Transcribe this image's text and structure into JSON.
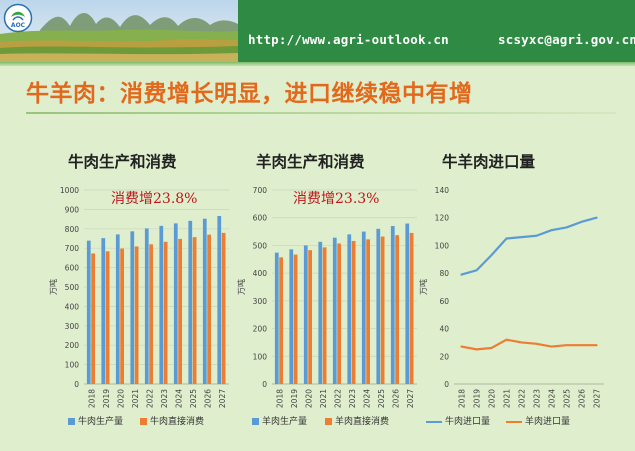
{
  "header": {
    "url": "http://www.agri-outlook.cn",
    "email": "scsyxc@agri.gov.cn",
    "logo_text": "AOC"
  },
  "slide_title": "牛羊肉：消费增长明显，进口继续稳中有增",
  "colors": {
    "header_green": "#2f8a43",
    "background": "#dfeecd",
    "title_orange": "#e2691c",
    "series_blue": "#5b9bd5",
    "series_orange": "#ed7d31",
    "note_red": "#c0161b"
  },
  "chart_data": [
    {
      "type": "bar",
      "title": "牛肉生产和消费",
      "annotation": "消费增23.8%",
      "ylabel": "万吨",
      "ylim": [
        0,
        1000
      ],
      "yticks": [
        0,
        100,
        200,
        300,
        400,
        500,
        600,
        700,
        800,
        900,
        1000
      ],
      "categories": [
        "2018",
        "2019",
        "2020",
        "2021",
        "2022",
        "2023",
        "2024",
        "2025",
        "2026",
        "2027"
      ],
      "series": [
        {
          "name": "牛肉生产量",
          "values": [
            739,
            752,
            771,
            787,
            802,
            815,
            828,
            841,
            852,
            866
          ]
        },
        {
          "name": "牛肉直接消费",
          "values": [
            673,
            684,
            698,
            709,
            720,
            733,
            748,
            757,
            770,
            779
          ]
        }
      ],
      "grid": true,
      "legend": "bottom"
    },
    {
      "type": "bar",
      "title": "羊肉生产和消费",
      "annotation": "消费增23.3%",
      "ylabel": "万吨",
      "ylim": [
        0,
        700
      ],
      "yticks": [
        0,
        100,
        200,
        300,
        400,
        500,
        600,
        700
      ],
      "categories": [
        "2018",
        "2019",
        "2020",
        "2021",
        "2022",
        "2023",
        "2024",
        "2025",
        "2026",
        "2027"
      ],
      "series": [
        {
          "name": "羊肉生产量",
          "values": [
            474,
            486,
            500,
            513,
            528,
            540,
            550,
            560,
            570,
            579
          ]
        },
        {
          "name": "羊肉直接消费",
          "values": [
            457,
            467,
            483,
            493,
            507,
            516,
            522,
            532,
            537,
            545
          ]
        }
      ],
      "grid": true,
      "legend": "bottom"
    },
    {
      "type": "line",
      "title": "牛羊肉进口量",
      "ylabel": "万吨",
      "ylim": [
        0,
        140
      ],
      "yticks": [
        0,
        20,
        40,
        60,
        80,
        100,
        120,
        140
      ],
      "categories": [
        "2018",
        "2019",
        "2020",
        "2021",
        "2022",
        "2023",
        "2024",
        "2025",
        "2026",
        "2027"
      ],
      "series": [
        {
          "name": "牛肉进口量",
          "values": [
            79,
            82,
            93,
            105,
            106,
            107,
            111,
            113,
            117,
            120
          ]
        },
        {
          "name": "羊肉进口量",
          "values": [
            27,
            25,
            26,
            32,
            30,
            29,
            27,
            28,
            28,
            28
          ]
        }
      ],
      "grid": false,
      "legend": "bottom"
    }
  ]
}
